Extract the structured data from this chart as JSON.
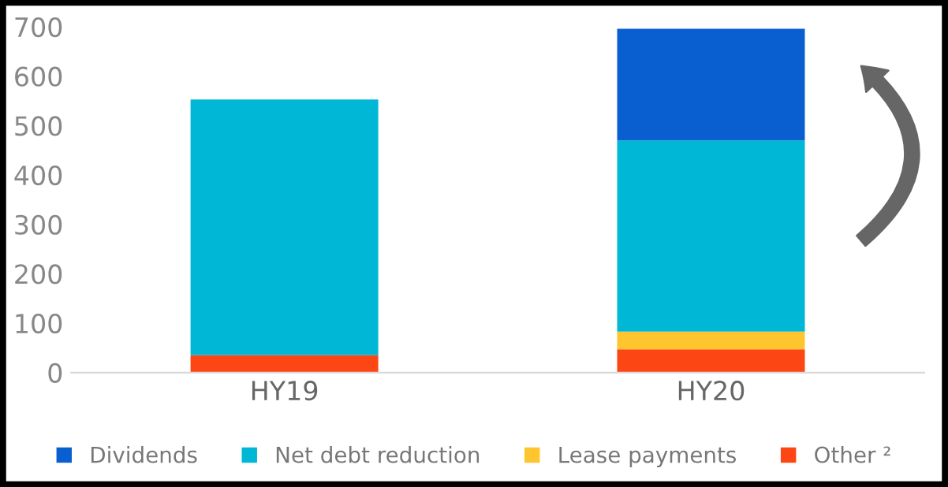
{
  "chart_data": {
    "type": "bar",
    "stacked": true,
    "categories": [
      "HY19",
      "HY20"
    ],
    "series": [
      {
        "name": "Other ²",
        "color": "#fc4614",
        "values": [
          35,
          47
        ]
      },
      {
        "name": "Lease payments",
        "color": "#fec52e",
        "values": [
          null,
          36
        ]
      },
      {
        "name": "Net debt reduction",
        "color": "#00b7d6",
        "values": [
          518,
          387
        ]
      },
      {
        "name": "Dividends",
        "color": "#0a5fd0",
        "values": [
          null,
          226
        ]
      }
    ],
    "ylim": [
      0,
      700
    ],
    "yticks": [
      0,
      100,
      200,
      300,
      400,
      500,
      600,
      700
    ],
    "grid": false,
    "legend": "bottom"
  }
}
